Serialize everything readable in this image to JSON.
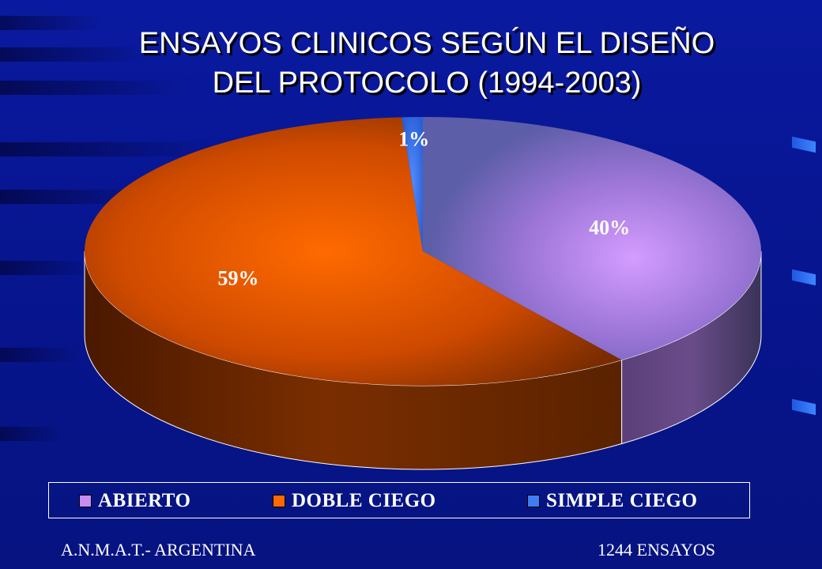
{
  "title_lines": [
    "ENSAYOS CLINICOS SEGÚN EL DISEÑO",
    "DEL PROTOCOLO (1994-2003)"
  ],
  "chart_data": {
    "type": "pie",
    "title": "ENSAYOS CLINICOS SEGÚN EL DISEÑO DEL PROTOCOLO (1994-2003)",
    "style": "3d",
    "legend_position": "bottom",
    "slices": [
      {
        "label": "ABIERTO",
        "value": 40,
        "display": "40%",
        "color": "#c98cf0"
      },
      {
        "label": "DOBLE CIEGO",
        "value": 59,
        "display": "59%",
        "color": "#ff6a00"
      },
      {
        "label": "SIMPLE CIEGO",
        "value": 1,
        "display": "1%",
        "color": "#3f7df5"
      }
    ]
  },
  "footer": {
    "left": "A.N.M.A.T.- ARGENTINA",
    "right": "1244 ENSAYOS"
  }
}
